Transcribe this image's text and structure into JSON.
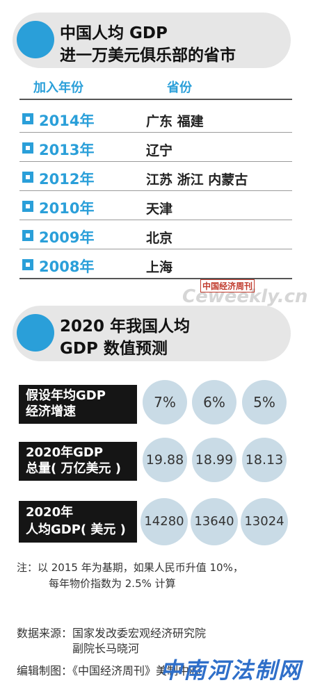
{
  "section1": {
    "title_line1": "中国人均 GDP",
    "title_line2": "进一万美元俱乐部的省市"
  },
  "table": {
    "header_year": "加入年份",
    "header_province": "省份",
    "rows": [
      {
        "year": "2014年",
        "provinces": "广东  福建"
      },
      {
        "year": "2013年",
        "provinces": "辽宁"
      },
      {
        "year": "2012年",
        "provinces": "江苏  浙江  内蒙古"
      },
      {
        "year": "2010年",
        "provinces": "天津"
      },
      {
        "year": "2009年",
        "provinces": "北京"
      },
      {
        "year": "2008年",
        "provinces": "上海"
      }
    ]
  },
  "watermark": {
    "seal": "中国经济周刊",
    "url": "Ceweekly.cn"
  },
  "section2": {
    "title_line1": "2020 年我国人均",
    "title_line2": "GDP 数值预测"
  },
  "forecast": {
    "rows": [
      {
        "label_line1": "假设年均GDP",
        "label_line2": "经济增速",
        "values": [
          "7%",
          "6%",
          "5%"
        ]
      },
      {
        "label_line1": "2020年GDP",
        "label_line2": "总量( 万亿美元 )",
        "values": [
          "19.88",
          "18.99",
          "18.13"
        ]
      },
      {
        "label_line1": "2020年",
        "label_line2": "人均GDP( 美元 )",
        "values": [
          "14280",
          "13640",
          "13024"
        ]
      }
    ]
  },
  "note": {
    "line1": "注：以 2015 年为基期，如果人民币升值 10%，",
    "line2": "每年物价指数为 2.5% 计算"
  },
  "source": {
    "line1": "数据来源：国家发改委宏观经济研究院",
    "line2": "副院长马晓河"
  },
  "editor": "编辑制图：《中国经济周刊》美制中心",
  "stamp": "中南河法制网"
}
